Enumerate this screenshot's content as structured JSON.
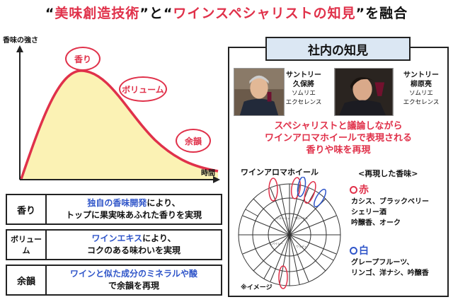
{
  "title": {
    "q_open": "“",
    "part1": "美味創造技術",
    "q_close_to": "”と“",
    "part2": "ワインスペシャリストの知見",
    "q_close_end": "”を融合"
  },
  "chart": {
    "ylabel": "香味の強さ",
    "xlabel": "時間",
    "labels": [
      "香り",
      "ボリューム",
      "余韻"
    ],
    "curve_color": "#e0314a",
    "fill_color": "#fbf2b4"
  },
  "rows": [
    {
      "label": "香り",
      "line1_hl": "独自の香味開発",
      "line1_rest": "により、",
      "line2": "トップに果実味あふれた香りを実現"
    },
    {
      "label": "ボリューム",
      "line1_hl": "ワインエキス",
      "line1_rest": "により、",
      "line2": "コクのある味わいを実現"
    },
    {
      "label": "余韻",
      "line1_hl": "ワインと似た成分のミネラルや酸",
      "line1_rest": "",
      "line2": "で余韻を再現"
    }
  ],
  "panel": {
    "title": "社内の知見",
    "person1": {
      "company": "サントリー",
      "name": "久保將",
      "role1": "ソムリエ",
      "role2": "エクセレンス"
    },
    "person2": {
      "company": "サントリー",
      "name": "柳原亮",
      "role1": "ソムリエ",
      "role2": "エクセレンス"
    },
    "statement": [
      "スペシャリストと議論しながら",
      "ワインアロマホイールで表現される",
      "香りや味を再現"
    ],
    "wheel_label": "ワインアロマホイール",
    "wheel_note": "※イメージ",
    "reproduced_title": "<再現した香味>",
    "red": {
      "label": "赤",
      "items": [
        "カシス、ブラックベリー",
        "シェリー酒",
        "吟醸香、オーク"
      ]
    },
    "white": {
      "label": "白",
      "items": [
        "グレープフルーツ、",
        "リンゴ、洋ナシ、吟醸香"
      ]
    },
    "red_color": "#e0314a",
    "blue_color": "#2f55c9"
  }
}
